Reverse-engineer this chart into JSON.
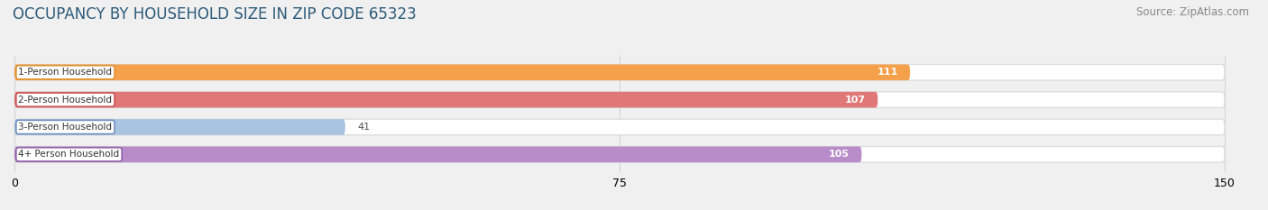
{
  "title": "OCCUPANCY BY HOUSEHOLD SIZE IN ZIP CODE 65323",
  "source": "Source: ZipAtlas.com",
  "categories": [
    "1-Person Household",
    "2-Person Household",
    "3-Person Household",
    "4+ Person Household"
  ],
  "values": [
    111,
    107,
    41,
    105
  ],
  "bar_colors": [
    "#f5a04a",
    "#e07878",
    "#a8c4e0",
    "#b88cc8"
  ],
  "label_border_colors": [
    "#e09030",
    "#cc5555",
    "#7090c0",
    "#9060a8"
  ],
  "label_colors": [
    "white",
    "white",
    "black",
    "white"
  ],
  "xlim": [
    0,
    150
  ],
  "xticks": [
    0,
    75,
    150
  ],
  "background_color": "#f0f0f0",
  "bar_background": "#e8e8e8",
  "title_fontsize": 12,
  "source_fontsize": 8.5,
  "bar_height": 0.58,
  "figsize": [
    14.06,
    2.33
  ],
  "dpi": 100
}
